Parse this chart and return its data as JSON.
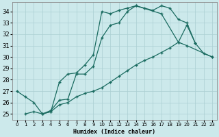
{
  "xlabel": "Humidex (Indice chaleur)",
  "bg_color": "#cce9eb",
  "grid_color": "#aacfd2",
  "line_color": "#1a6b60",
  "xlim": [
    -0.5,
    23.5
  ],
  "ylim": [
    24.5,
    34.8
  ],
  "yticks": [
    25,
    26,
    27,
    28,
    29,
    30,
    31,
    32,
    33,
    34
  ],
  "xticks": [
    0,
    1,
    2,
    3,
    4,
    5,
    6,
    7,
    8,
    9,
    10,
    11,
    12,
    13,
    14,
    15,
    16,
    17,
    18,
    19,
    20,
    21,
    22,
    23
  ],
  "curves": [
    {
      "x": [
        0,
        1,
        2,
        3,
        4,
        5,
        6,
        7,
        8,
        9,
        10,
        11,
        12,
        13,
        14,
        15,
        16,
        17,
        18,
        19,
        20,
        21
      ],
      "y": [
        27.0,
        26.5,
        26.0,
        25.0,
        25.2,
        27.8,
        28.5,
        28.6,
        29.3,
        30.2,
        34.0,
        33.8,
        34.1,
        34.3,
        34.5,
        34.3,
        34.1,
        34.5,
        34.3,
        33.3,
        33.0,
        31.2
      ]
    },
    {
      "x": [
        3,
        4,
        5,
        6,
        7,
        8,
        9,
        10,
        11,
        12,
        13,
        14,
        17,
        19,
        20,
        23
      ],
      "y": [
        25.0,
        25.3,
        26.2,
        26.3,
        28.5,
        28.5,
        29.2,
        31.7,
        32.8,
        33.0,
        34.0,
        34.5,
        33.8,
        31.3,
        31.0,
        30.0
      ]
    },
    {
      "x": [
        1,
        2,
        3,
        4,
        5,
        6,
        7,
        8,
        9,
        10,
        11,
        12,
        13,
        14,
        15,
        16,
        17,
        18,
        19,
        20,
        21,
        22,
        23
      ],
      "y": [
        25.0,
        25.2,
        25.0,
        25.2,
        25.8,
        26.0,
        26.5,
        26.8,
        27.0,
        27.3,
        27.8,
        28.3,
        28.8,
        29.3,
        29.7,
        30.0,
        30.4,
        30.8,
        31.3,
        32.8,
        31.2,
        30.3,
        30.0
      ]
    }
  ]
}
